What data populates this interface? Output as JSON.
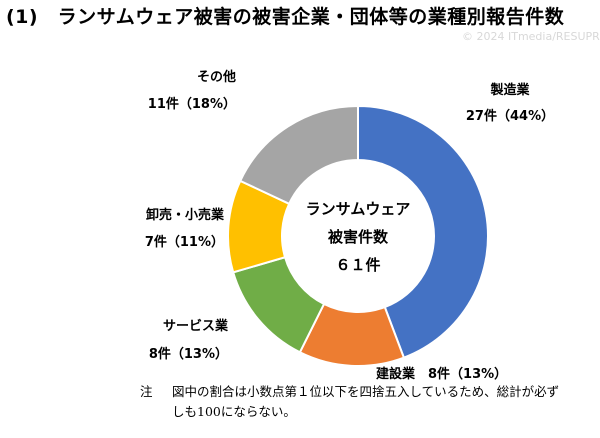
{
  "page": {
    "title": "(1)　ランサムウェア被害の被害企業・団体等の業種別報告件数",
    "watermark": "© 2024 ITmedia/RESUPRISE JP",
    "note_label": "注",
    "note_text": "図中の割合は小数点第１位以下を四捨五入しているため、総計が必ずしも100にならない。"
  },
  "chart_data": {
    "type": "pie",
    "title": "(1)　ランサムウェア被害の被害企業・団体等の業種別報告件数",
    "center_lines": [
      "ランサムウェア",
      "被害件数",
      "６１件"
    ],
    "slices": [
      {
        "label": "製造業",
        "count_label": "27件（44%）",
        "value": 27,
        "percent": 44,
        "color": "#4472C4"
      },
      {
        "label": "建設業",
        "count_label": "8件（13%）",
        "value": 8,
        "percent": 13,
        "color": "#ED7D31"
      },
      {
        "label": "サービス業",
        "count_label": "8件（13%）",
        "value": 8,
        "percent": 13,
        "color": "#70AD47"
      },
      {
        "label": "卸売・小売業",
        "count_label": "7件（11%）",
        "value": 7,
        "percent": 11,
        "color": "#FFC000"
      },
      {
        "label": "その他",
        "count_label": "11件（18%）",
        "value": 11,
        "percent": 18,
        "color": "#A5A5A5"
      }
    ],
    "total": 61
  }
}
